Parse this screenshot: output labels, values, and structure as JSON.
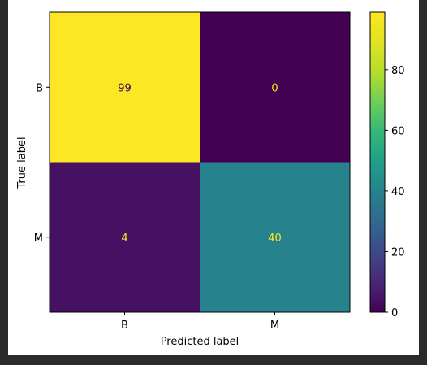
{
  "chart_data": {
    "type": "heatmap",
    "title": "",
    "xlabel": "Predicted label",
    "ylabel": "True label",
    "x_categories": [
      "B",
      "M"
    ],
    "y_categories": [
      "B",
      "M"
    ],
    "values": [
      [
        99,
        0
      ],
      [
        4,
        40
      ]
    ],
    "colormap": "viridis",
    "colorbar": {
      "min": 0,
      "max": 99,
      "ticks": [
        0,
        20,
        40,
        60,
        80
      ]
    },
    "colors": {
      "high": "#fde725",
      "low": "#440154",
      "text_on_dark": "#fde725",
      "text_on_light": "#440154"
    }
  }
}
